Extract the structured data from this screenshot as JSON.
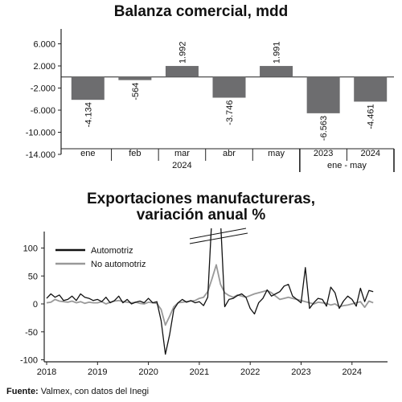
{
  "chart_data": [
    {
      "type": "bar",
      "title": "Balanza comercial, mdd",
      "categories": [
        "ene",
        "feb",
        "mar",
        "abr",
        "may",
        "2023",
        "2024"
      ],
      "group_labels": [
        "2024",
        "ene - may"
      ],
      "values": [
        -4134,
        -564,
        1992,
        -3746,
        1991,
        -6563,
        -4461
      ],
      "value_labels": [
        "-4.134",
        "-564",
        "1.992",
        "-3.746",
        "1.991",
        "-6.563",
        "-4.461"
      ],
      "ylim": [
        -14000,
        6000
      ],
      "yticks": [
        6000,
        2000,
        -2000,
        -6000,
        -10000,
        -14000
      ],
      "ytick_labels": [
        "6.000",
        "2.000",
        "-2.000",
        "-6.000",
        "-10.000",
        "-14.000"
      ],
      "bar_color": "#6d6d6f"
    },
    {
      "type": "line",
      "title": "Exportaciones manufactureras, variación anual %",
      "ylim": [
        -100,
        125
      ],
      "yticks": [
        100,
        50,
        0,
        -50,
        -100
      ],
      "ytick_labels": [
        "100",
        "50",
        "0",
        "-50",
        "-100"
      ],
      "xticks": [
        "2018",
        "2019",
        "2020",
        "2021",
        "2022",
        "2023",
        "2024"
      ],
      "x_start": 2018.0,
      "x_step": 0.08333,
      "legend": "top-left",
      "axis_break": true,
      "series": [
        {
          "name": "Automotriz",
          "color": "#111111",
          "values": [
            10,
            18,
            12,
            16,
            6,
            8,
            14,
            6,
            18,
            12,
            10,
            6,
            8,
            4,
            12,
            2,
            6,
            14,
            2,
            8,
            0,
            3,
            5,
            2,
            10,
            2,
            4,
            -30,
            -90,
            -55,
            -10,
            2,
            8,
            3,
            6,
            2,
            4,
            -3,
            12,
            160,
            280,
            150,
            -5,
            8,
            10,
            15,
            18,
            12,
            -8,
            -18,
            2,
            10,
            25,
            14,
            18,
            22,
            32,
            35,
            14,
            8,
            2,
            65,
            -8,
            2,
            10,
            8,
            -4,
            30,
            20,
            -8,
            5,
            14,
            8,
            -4,
            28,
            4,
            24,
            22
          ]
        },
        {
          "name": "No automotriz",
          "color": "#999999",
          "values": [
            2,
            3,
            8,
            5,
            4,
            3,
            5,
            2,
            4,
            1,
            3,
            2,
            2,
            4,
            0,
            3,
            5,
            6,
            4,
            3,
            2,
            3,
            1,
            0,
            3,
            2,
            1,
            -10,
            -38,
            -22,
            -5,
            2,
            3,
            4,
            5,
            6,
            10,
            12,
            22,
            45,
            70,
            35,
            20,
            15,
            12,
            16,
            14,
            12,
            15,
            18,
            20,
            22,
            24,
            20,
            14,
            8,
            10,
            12,
            10,
            8,
            6,
            4,
            2,
            0,
            3,
            2,
            1,
            -2,
            0,
            -5,
            -3,
            -2,
            0,
            2,
            4,
            -6,
            5,
            2
          ]
        }
      ]
    }
  ],
  "text": {
    "title1": "Balanza comercial, mdd",
    "title2_line1": "Exportaciones manufactureras,",
    "title2_line2": "variación anual %",
    "source_label": "Fuente:",
    "source_text": " Valmex, con datos del Inegi"
  }
}
